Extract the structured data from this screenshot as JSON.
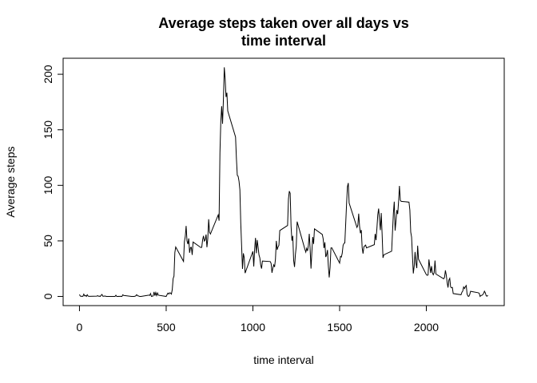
{
  "chart_data": {
    "type": "line",
    "title": "Average steps taken over all days vs time interval",
    "xlabel": "time interval",
    "ylabel": "Average steps",
    "x": [
      0,
      5,
      10,
      15,
      20,
      25,
      30,
      35,
      40,
      45,
      50,
      55,
      100,
      105,
      110,
      115,
      120,
      125,
      130,
      135,
      140,
      145,
      150,
      155,
      200,
      205,
      210,
      215,
      220,
      225,
      230,
      235,
      240,
      245,
      250,
      255,
      300,
      305,
      310,
      315,
      320,
      325,
      330,
      335,
      340,
      345,
      350,
      355,
      400,
      405,
      410,
      415,
      420,
      425,
      430,
      435,
      440,
      445,
      450,
      455,
      500,
      505,
      510,
      515,
      520,
      525,
      530,
      535,
      540,
      545,
      550,
      555,
      600,
      605,
      610,
      615,
      620,
      625,
      630,
      635,
      640,
      645,
      650,
      655,
      700,
      705,
      710,
      715,
      720,
      725,
      730,
      735,
      740,
      745,
      750,
      755,
      800,
      805,
      810,
      815,
      820,
      825,
      830,
      835,
      840,
      845,
      850,
      855,
      900,
      905,
      910,
      915,
      920,
      925,
      930,
      935,
      940,
      945,
      950,
      955,
      1000,
      1005,
      1010,
      1015,
      1020,
      1025,
      1030,
      1035,
      1040,
      1045,
      1050,
      1055,
      1100,
      1105,
      1110,
      1115,
      1120,
      1125,
      1130,
      1135,
      1140,
      1145,
      1150,
      1155,
      1200,
      1205,
      1210,
      1215,
      1220,
      1225,
      1230,
      1235,
      1240,
      1245,
      1250,
      1255,
      1300,
      1305,
      1310,
      1315,
      1320,
      1325,
      1330,
      1335,
      1340,
      1345,
      1350,
      1355,
      1400,
      1405,
      1410,
      1415,
      1420,
      1425,
      1430,
      1435,
      1440,
      1445,
      1450,
      1455,
      1500,
      1505,
      1510,
      1515,
      1520,
      1525,
      1530,
      1535,
      1540,
      1545,
      1550,
      1555,
      1600,
      1605,
      1610,
      1615,
      1620,
      1625,
      1630,
      1635,
      1640,
      1645,
      1650,
      1655,
      1700,
      1705,
      1710,
      1715,
      1720,
      1725,
      1730,
      1735,
      1740,
      1745,
      1750,
      1755,
      1800,
      1805,
      1810,
      1815,
      1820,
      1825,
      1830,
      1835,
      1840,
      1845,
      1850,
      1855,
      1900,
      1905,
      1910,
      1915,
      1920,
      1925,
      1930,
      1935,
      1940,
      1945,
      1950,
      1955,
      2000,
      2005,
      2010,
      2015,
      2020,
      2025,
      2030,
      2035,
      2040,
      2045,
      2050,
      2055,
      2100,
      2105,
      2110,
      2115,
      2120,
      2125,
      2130,
      2135,
      2140,
      2145,
      2150,
      2155,
      2200,
      2205,
      2210,
      2215,
      2220,
      2225,
      2230,
      2235,
      2240,
      2245,
      2250,
      2255,
      2300,
      2305,
      2310,
      2315,
      2320,
      2325,
      2330,
      2335,
      2340,
      2345,
      2350,
      2355
    ],
    "series": [
      {
        "color": "#000000",
        "values": [
          1.7,
          0.3,
          0.1,
          0.2,
          0.1,
          2.1,
          0.5,
          0.9,
          0,
          1.5,
          0.3,
          0.1,
          0.3,
          0.7,
          0.2,
          0.3,
          0,
          1.1,
          1.8,
          0.2,
          0.2,
          0.4,
          0.3,
          0,
          0,
          0,
          1.1,
          0,
          0,
          0.1,
          0,
          0.2,
          0,
          0,
          1.5,
          0.9,
          0,
          0,
          0,
          0,
          0.2,
          0.6,
          1.6,
          0.6,
          0.5,
          0.1,
          0,
          0,
          1.2,
          0.9,
          2.6,
          0,
          0.3,
          0.4,
          4.1,
          0.7,
          3.5,
          0.8,
          3.1,
          1.1,
          0,
          1.6,
          3,
          2.2,
          3.3,
          3,
          2.1,
          6.1,
          16,
          18.3,
          39.5,
          44.5,
          31.5,
          49.3,
          53.8,
          63.5,
          50,
          47.1,
          52.2,
          39.3,
          44,
          44.2,
          37.4,
          49,
          44,
          44.2,
          50.8,
          54.5,
          49.9,
          51,
          55.7,
          44.3,
          52.3,
          69.5,
          57.8,
          56.2,
          73.4,
          68.2,
          129.4,
          157.5,
          171.2,
          155.4,
          177.3,
          206.2,
          195.9,
          179.6,
          183.4,
          167,
          143.5,
          124,
          109.1,
          108.1,
          103.7,
          96,
          66.2,
          45.2,
          24.8,
          38.8,
          35,
          21,
          40.6,
          27,
          42.4,
          52.7,
          38.9,
          50.8,
          44.3,
          37.4,
          34.7,
          28.3,
          25.1,
          31.9,
          31.4,
          29.7,
          21.3,
          25.5,
          28.4,
          26.5,
          33.4,
          50,
          42,
          44.6,
          46,
          59.3,
          63.9,
          87.7,
          94.8,
          92.8,
          63.4,
          50.2,
          54.5,
          32.4,
          26.5,
          37.7,
          45.1,
          67.3,
          42.3,
          39.9,
          43.3,
          41,
          46.2,
          56.4,
          42.8,
          25.1,
          40,
          53.5,
          47.3,
          60.8,
          55.8,
          52,
          43.6,
          48.7,
          35.5,
          37.5,
          41.8,
          27.5,
          17.1,
          26.1,
          43.6,
          43.8,
          30,
          36.1,
          35.5,
          38.8,
          46,
          47.8,
          48.1,
          65.3,
          82.9,
          98.7,
          102.1,
          84,
          62.1,
          64.1,
          74.5,
          63.2,
          56.9,
          59.8,
          43.9,
          38.6,
          44.7,
          45.5,
          46.2,
          43.7,
          46.6,
          56.3,
          50.7,
          61.2,
          73.4,
          79.1,
          68.9,
          59.7,
          75.1,
          56.5,
          34.8,
          37.5,
          40.7,
          58,
          74.7,
          85.3,
          59.3,
          67.8,
          77.7,
          74.2,
          85.3,
          99.5,
          86.6,
          85.6,
          84.9,
          77.8,
          58,
          53.4,
          36.3,
          20.7,
          27.4,
          40,
          30.2,
          25.5,
          45.7,
          33.5,
          19.6,
          19,
          19.3,
          33.3,
          26.8,
          21.2,
          27.3,
          21.3,
          19.5,
          21.3,
          32.3,
          20.2,
          15.9,
          17.2,
          23.5,
          19.2,
          12.5,
          8,
          14.7,
          16.3,
          8.7,
          7.8,
          8.1,
          2.6,
          1.5,
          3.7,
          4.8,
          8.5,
          7.1,
          8.7,
          9.8,
          2.2,
          0.3,
          0.1,
          1.6,
          4.6,
          3.3,
          2.8,
          0,
          0.8,
          1,
          1.6,
          2.6,
          4.7,
          3.3,
          0.6,
          0.2,
          1.1
        ]
      }
    ],
    "xlim": [
      -94.2,
      2449.2
    ],
    "ylim": [
      -8.25,
      214.42
    ],
    "xticks": [
      0,
      500,
      1000,
      1500,
      2000
    ],
    "yticks": [
      0,
      50,
      100,
      150,
      200
    ]
  }
}
